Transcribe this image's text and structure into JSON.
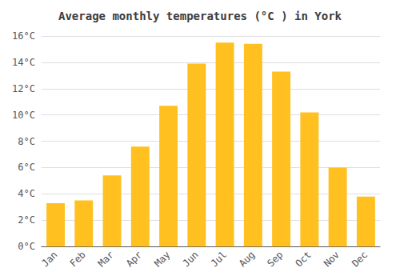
{
  "chart_data": {
    "type": "bar",
    "title": "Average monthly temperatures (°C ) in York",
    "categories": [
      "Jan",
      "Feb",
      "Mar",
      "Apr",
      "May",
      "Jun",
      "Jul",
      "Aug",
      "Sep",
      "Oct",
      "Nov",
      "Dec"
    ],
    "values": [
      3.3,
      3.5,
      5.4,
      7.6,
      10.7,
      13.9,
      15.5,
      15.4,
      13.3,
      10.2,
      6.0,
      3.8
    ],
    "color": "#FFC020",
    "ylim": [
      0,
      16
    ],
    "yticks": [
      {
        "value": 0,
        "label": "0°C"
      },
      {
        "value": 2,
        "label": "2°C"
      },
      {
        "value": 4,
        "label": "4°C"
      },
      {
        "value": 6,
        "label": "6°C"
      },
      {
        "value": 8,
        "label": "8°C"
      },
      {
        "value": 10,
        "label": "10°C"
      },
      {
        "value": 12,
        "label": "12°C"
      },
      {
        "value": 14,
        "label": "14°C"
      },
      {
        "value": 16,
        "label": "16°C"
      }
    ],
    "grid": true
  }
}
